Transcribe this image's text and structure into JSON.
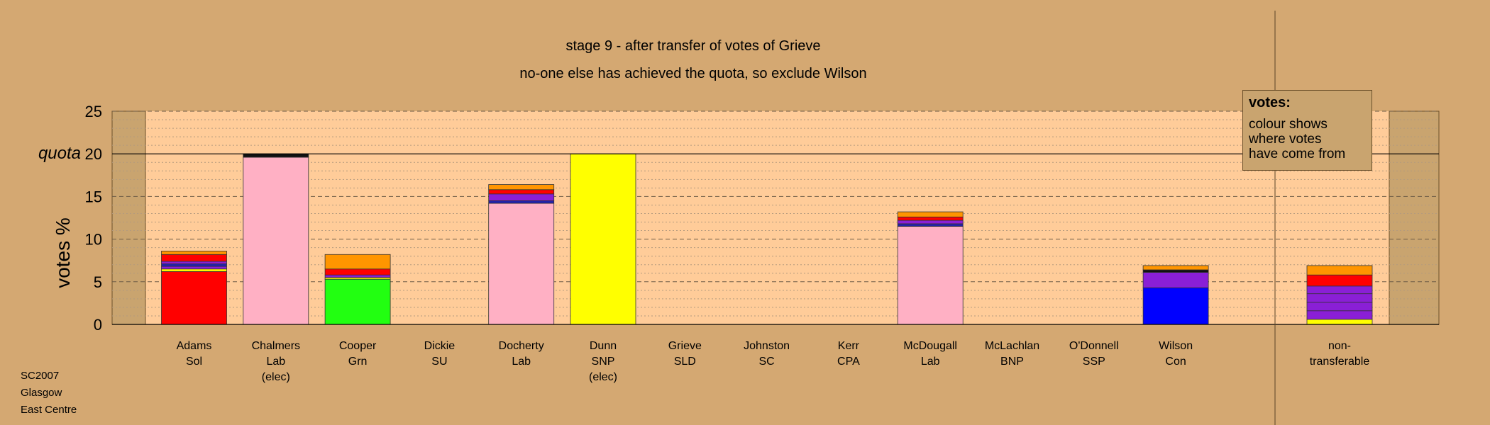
{
  "chart_data": {
    "type": "bar",
    "stacked": true,
    "title": "stage 9 - after transfer of votes of Grieve",
    "subtitle": "no-one else has achieved the quota, so exclude Wilson",
    "ylabel": "votes %",
    "ylim": [
      0,
      25
    ],
    "yticks": [
      0,
      5,
      10,
      15,
      20,
      25
    ],
    "quota": 20,
    "quota_label": "quota",
    "grid": true,
    "candidates": [
      {
        "name": "Adams",
        "party": "Sol",
        "status": "",
        "segments": [
          {
            "color": "#ff0000",
            "value": 6.2
          },
          {
            "color": "#ffff00",
            "value": 0.3
          },
          {
            "color": "#8a1fd6",
            "value": 0.3
          },
          {
            "color": "#2222aa",
            "value": 0.3
          },
          {
            "color": "#8a1fd6",
            "value": 0.3
          },
          {
            "color": "#ff0000",
            "value": 0.8
          },
          {
            "color": "#ff9500",
            "value": 0.4
          }
        ]
      },
      {
        "name": "Chalmers",
        "party": "Lab",
        "status": "(elec)",
        "segments": [
          {
            "color": "#ffb0c4",
            "value": 19.6
          },
          {
            "color": "#111111",
            "value": 0.4
          }
        ]
      },
      {
        "name": "Cooper",
        "party": "Grn",
        "status": "",
        "segments": [
          {
            "color": "#22ff11",
            "value": 5.3
          },
          {
            "color": "#ffff00",
            "value": 0.2
          },
          {
            "color": "#8a1fd6",
            "value": 0.3
          },
          {
            "color": "#ff0000",
            "value": 0.7
          },
          {
            "color": "#ff9500",
            "value": 1.7
          }
        ]
      },
      {
        "name": "Dickie",
        "party": "SU",
        "status": "",
        "segments": []
      },
      {
        "name": "Docherty",
        "party": "Lab",
        "status": "",
        "segments": [
          {
            "color": "#ffb0c4",
            "value": 14.2
          },
          {
            "color": "#2222aa",
            "value": 0.3
          },
          {
            "color": "#8a1fd6",
            "value": 0.8
          },
          {
            "color": "#ff0000",
            "value": 0.5
          },
          {
            "color": "#ff9500",
            "value": 0.6
          }
        ]
      },
      {
        "name": "Dunn",
        "party": "SNP",
        "status": "(elec)",
        "segments": [
          {
            "color": "#ffff00",
            "value": 20
          }
        ]
      },
      {
        "name": "Grieve",
        "party": "SLD",
        "status": "",
        "segments": []
      },
      {
        "name": "Johnston",
        "party": "SC",
        "status": "",
        "segments": []
      },
      {
        "name": "Kerr",
        "party": "CPA",
        "status": "",
        "segments": []
      },
      {
        "name": "McDougall",
        "party": "Lab",
        "status": "",
        "segments": [
          {
            "color": "#ffb0c4",
            "value": 11.5
          },
          {
            "color": "#2222aa",
            "value": 0.3
          },
          {
            "color": "#8a1fd6",
            "value": 0.4
          },
          {
            "color": "#ff0000",
            "value": 0.4
          },
          {
            "color": "#ff9500",
            "value": 0.6
          }
        ]
      },
      {
        "name": "McLachlan",
        "party": "BNP",
        "status": "",
        "segments": []
      },
      {
        "name": "O'Donnell",
        "party": "SSP",
        "status": "",
        "segments": []
      },
      {
        "name": "Wilson",
        "party": "Con",
        "status": "",
        "segments": [
          {
            "color": "#0000ff",
            "value": 4.3
          },
          {
            "color": "#8a1fd6",
            "value": 1.8
          },
          {
            "color": "#111111",
            "value": 0.3
          },
          {
            "color": "#ff9500",
            "value": 0.5
          }
        ]
      }
    ],
    "nontransferable": {
      "name": "non-",
      "party": "transferable",
      "status": "",
      "segments": [
        {
          "color": "#ffff00",
          "value": 0.6
        },
        {
          "color": "#8a1fd6",
          "value": 1.0
        },
        {
          "color": "#8a1fd6",
          "value": 1.0
        },
        {
          "color": "#8a1fd6",
          "value": 1.0
        },
        {
          "color": "#8a1fd6",
          "value": 0.9
        },
        {
          "color": "#ff0000",
          "value": 1.3
        },
        {
          "color": "#ff9500",
          "value": 1.1
        }
      ]
    }
  },
  "legend": {
    "title": "votes:",
    "lines": [
      "colour shows",
      "where votes",
      "have come from"
    ]
  },
  "footer": {
    "lines": [
      "SC2007",
      "Glasgow",
      "East Centre"
    ]
  },
  "colors": {
    "background": "#d4a872",
    "plot_area": "#ffcc99",
    "side_panel": "#c9a46f"
  }
}
